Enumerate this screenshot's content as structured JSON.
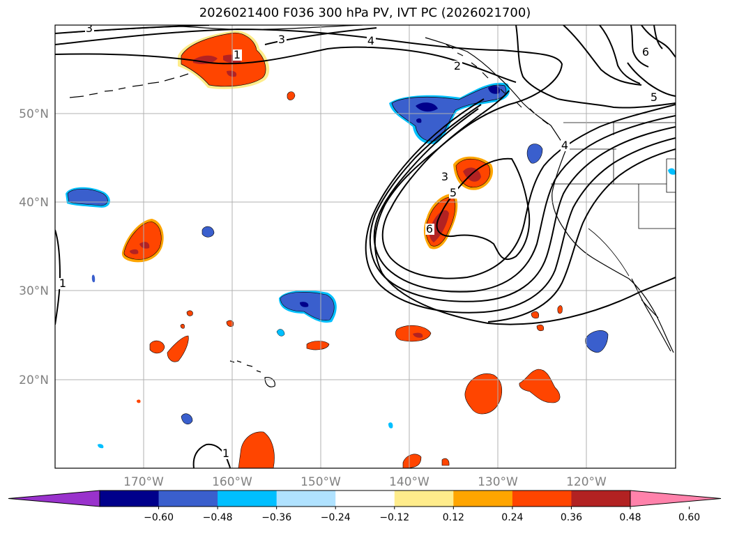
{
  "title": "2026021400 F036 300 hPa PV, IVT PC (2026021700)",
  "map": {
    "lon_ticks": [
      "170°W",
      "160°W",
      "150°W",
      "140°W",
      "130°W",
      "120°W"
    ],
    "lat_ticks": [
      "50°N",
      "40°N",
      "30°N",
      "20°N"
    ],
    "contour_labels": [
      "3",
      "3",
      "4",
      "1",
      "2",
      "6",
      "5",
      "4",
      "3",
      "5",
      "6",
      "1",
      "1"
    ]
  },
  "colorbar": {
    "ticks": [
      "−0.60",
      "−0.48",
      "−0.36",
      "−0.24",
      "−0.12",
      "0.12",
      "0.24",
      "0.36",
      "0.48",
      "0.60"
    ],
    "colors": [
      "#9932cc",
      "#00008b",
      "#3a5fcd",
      "#00bfff",
      "#b0e2ff",
      "#ffffff",
      "#ffec8b",
      "#ffa500",
      "#ff4500",
      "#b22222",
      "#ff82ab"
    ]
  }
}
